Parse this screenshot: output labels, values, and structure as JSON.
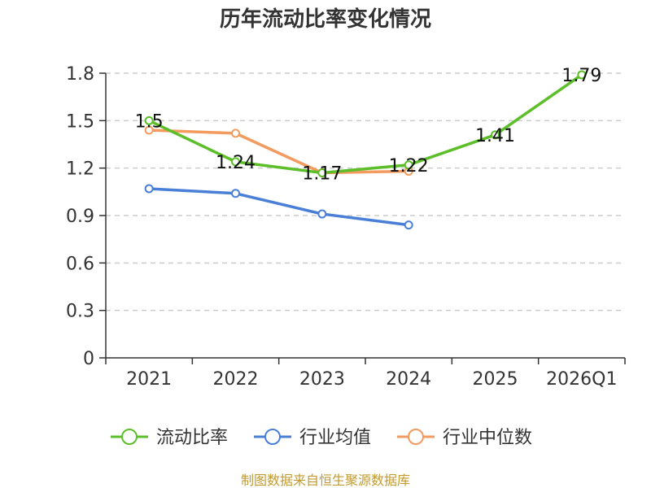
{
  "chart_data": {
    "type": "line",
    "title": "历年流动比率变化情况",
    "categories": [
      "2021",
      "2022",
      "2023",
      "2024",
      "2025",
      "2026Q1"
    ],
    "ylim": [
      0,
      1.8
    ],
    "yticks": [
      "0",
      "0.3",
      "0.6",
      "0.9",
      "1.2",
      "1.5",
      "1.8"
    ],
    "grid": true,
    "legend_position": "bottom",
    "series": [
      {
        "name": "流动比率",
        "color": "#5cbf2a",
        "values": [
          1.5,
          1.24,
          1.17,
          1.22,
          1.41,
          1.79
        ],
        "labels": [
          "1.5",
          "1.24",
          "1.17",
          "1.22",
          "1.41",
          "1.79"
        ]
      },
      {
        "name": "行业均值",
        "color": "#4a7fd8",
        "values": [
          1.07,
          1.04,
          0.91,
          0.84,
          null,
          null
        ]
      },
      {
        "name": "行业中位数",
        "color": "#f39a5f",
        "values": [
          1.44,
          1.42,
          1.17,
          1.18,
          null,
          null
        ]
      }
    ]
  },
  "footer": {
    "source": "制图数据来自恒生聚源数据库"
  }
}
